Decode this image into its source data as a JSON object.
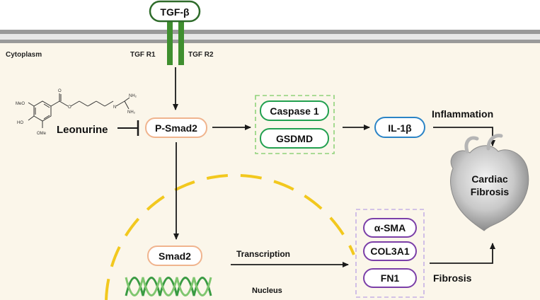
{
  "ligand": {
    "label": "TGF-β"
  },
  "compartments": {
    "cytoplasm": "Cytoplasm",
    "nucleus": "Nucleus"
  },
  "receptors": {
    "r1": "TGF R1",
    "r2": "TGF R2"
  },
  "drug": {
    "name": "Leonurine",
    "structure_labels": {
      "ome_top": "MeO",
      "ho": "HO",
      "ome_bottom": "OMe",
      "o_ester": "O",
      "n_imine": "N",
      "nh2_top": "NH₂",
      "nh2_bottom": "NH₂"
    }
  },
  "nodes": {
    "p_smad2": "P-Smad2",
    "caspase1": "Caspase 1",
    "gsdmd": "GSDMD",
    "il1b": "IL-1β",
    "smad2": "Smad2",
    "asma": "α-SMA",
    "col3a1": "COL3A1",
    "fn1": "FN1"
  },
  "process_labels": {
    "inflammation": "Inflammation",
    "transcription": "Transcription",
    "fibrosis": "Fibrosis"
  },
  "outcome": {
    "line1": "Cardiac",
    "line2": "Fibrosis"
  },
  "colors": {
    "tgf_green": "#2e6b2a",
    "receptor_green": "#3f8f2f",
    "membrane_gray": "#9a9a9a",
    "cytoplasm_bg": "#fbf6ea",
    "smad_orange": "#f0b48e",
    "caspase_green": "#22a050",
    "il1b_blue": "#2b84c6",
    "fibrosis_purple": "#7b3fa8",
    "nucleus_yellow": "#f2c81e",
    "dna_green": "#3a9b43"
  }
}
